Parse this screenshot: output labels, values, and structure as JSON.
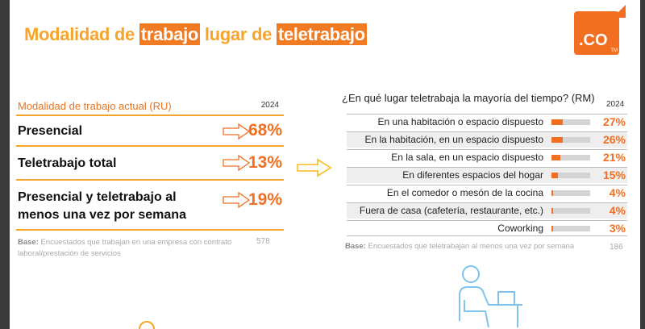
{
  "title": {
    "part1": "Modalidad de ",
    "hl1": "trabajo",
    "part2": " lugar de ",
    "hl2": "teletrabajo"
  },
  "logo": {
    "text": ".CO",
    "tm": "TM"
  },
  "colors": {
    "accent": "#f26f21",
    "title": "#f7a42a",
    "bar_track": "#d4d4d4"
  },
  "left_table": {
    "header": "Modalidad de trabajo actual (RU)",
    "year": "2024",
    "rows": [
      {
        "label": "Presencial",
        "value": "68%"
      },
      {
        "label": "Teletrabajo total",
        "value": "13%"
      },
      {
        "label": "Presencial y teletrabajo al menos una vez por semana",
        "value": "19%"
      }
    ],
    "base_label": "Base:",
    "base_text": " Encuestados que trabajan en una empresa con contrato laboral/prestación de servicios",
    "base_n": "578"
  },
  "right_table": {
    "title": "¿En qué lugar teletrabaja la mayoría del tiempo? (RM)",
    "year": "2024",
    "rows": [
      {
        "label": "En una habitación o espacio dispuesto",
        "value": "27%"
      },
      {
        "label": "En la habitación, en un espacio dispuesto",
        "value": "26%"
      },
      {
        "label": "En la sala, en un espacio dispuesto",
        "value": "21%"
      },
      {
        "label": "En diferentes espacios del hogar",
        "value": "15%"
      },
      {
        "label": "En el comedor o mesón de la cocina",
        "value": "4%"
      },
      {
        "label": "Fuera de casa (cafetería, restaurante, etc.)",
        "value": "4%"
      },
      {
        "label": "Coworking",
        "value": "3%"
      }
    ],
    "base_label": "Base:",
    "base_text": " Encuestados que teletrabajan al menos una vez por semana",
    "base_n": "186"
  },
  "chart_data": [
    {
      "type": "table",
      "title": "Modalidad de trabajo actual (RU)",
      "categories": [
        "Presencial",
        "Teletrabajo total",
        "Presencial y teletrabajo al menos una vez por semana"
      ],
      "series": [
        {
          "name": "2024",
          "values": [
            68,
            13,
            19
          ]
        }
      ]
    },
    {
      "type": "bar",
      "title": "¿En qué lugar teletrabaja la mayoría del tiempo? (RM)",
      "categories": [
        "En una habitación o espacio dispuesto",
        "En la habitación, en un espacio dispuesto",
        "En la sala, en un espacio dispuesto",
        "En diferentes espacios del hogar",
        "En el comedor o mesón de la cocina",
        "Fuera de casa (cafetería, restaurante, etc.)",
        "Coworking"
      ],
      "series": [
        {
          "name": "2024",
          "values": [
            27,
            26,
            21,
            15,
            4,
            4,
            3
          ]
        }
      ],
      "ylim": [
        0,
        100
      ]
    }
  ]
}
